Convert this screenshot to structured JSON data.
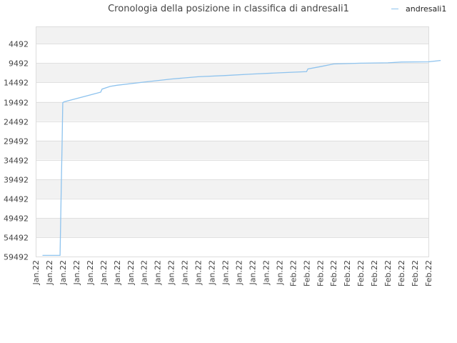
{
  "chart_data": {
    "type": "line",
    "title": "Cronologia della posizione in classifica di andresali1",
    "xlabel": "",
    "ylabel": "",
    "y_inverted": true,
    "ylim": [
      59492,
      0
    ],
    "y_ticks": [
      "4492",
      "9492",
      "14492",
      "19492",
      "24492",
      "29492",
      "34492",
      "39492",
      "44492",
      "49492",
      "54492",
      "59492"
    ],
    "x_tick_labels": [
      "Jan.22",
      "Jan.22",
      "Jan.22",
      "Jan.22",
      "Jan.22",
      "Jan.22",
      "Jan.22",
      "Jan.22",
      "Jan.22",
      "Jan.22",
      "Jan.22",
      "Jan.22",
      "Jan.22",
      "Jan.22",
      "Jan.22",
      "Jan.22",
      "Jan.22",
      "Jan.22",
      "Jan.22",
      "Feb.22",
      "Feb.22",
      "Feb.22",
      "Feb.22",
      "Feb.22",
      "Feb.22",
      "Feb.22",
      "Feb.22",
      "Feb.22",
      "Feb.22",
      "Feb.22"
    ],
    "legend_position": "top-right",
    "grid": true,
    "color": "#8ec3ee",
    "series": [
      {
        "name": "andresali1",
        "x": [
          0.5,
          1.8,
          1.9,
          1.95,
          2.0,
          2.1,
          4.8,
          4.9,
          5.5,
          6.0,
          8.0,
          10.0,
          12.0,
          14.0,
          16.0,
          18.0,
          20.0,
          20.1,
          21.0,
          22.0,
          24.0,
          26.0,
          27.0,
          29.0,
          29.9
        ],
        "y": [
          59200,
          59200,
          39500,
          30000,
          19700,
          19500,
          17000,
          16200,
          15500,
          15200,
          14400,
          13600,
          13000,
          12700,
          12300,
          12000,
          11700,
          11000,
          10400,
          9700,
          9500,
          9400,
          9200,
          9150,
          8800
        ]
      }
    ]
  }
}
